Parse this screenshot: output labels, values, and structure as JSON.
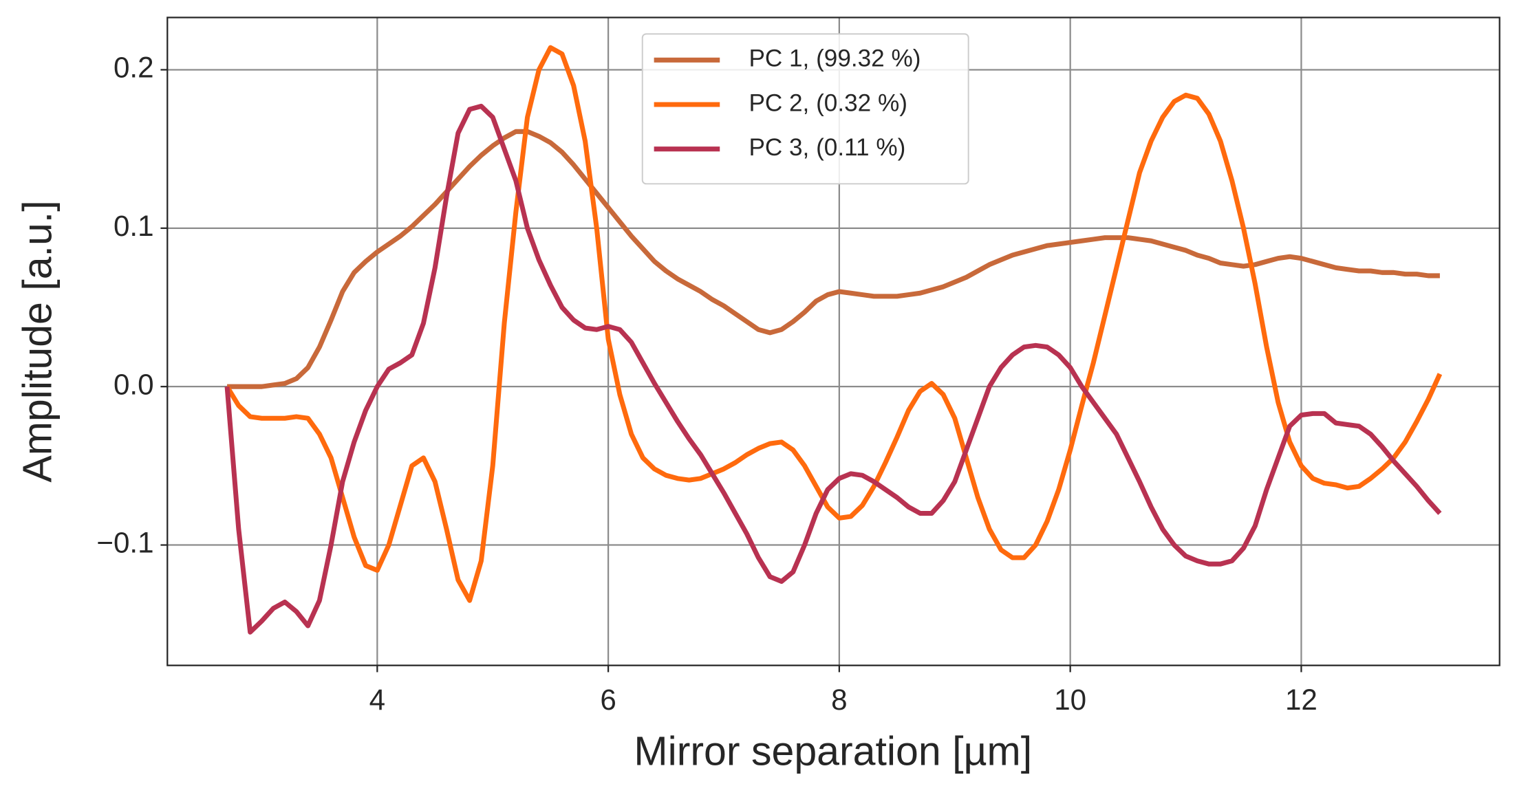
{
  "chart_data": {
    "type": "line",
    "x_label": "Mirror separation [µm]",
    "y_label": "Amplitude [a.u.]",
    "x": [
      2.7,
      2.8,
      2.9,
      3.0,
      3.1,
      3.2,
      3.3,
      3.4,
      3.5,
      3.6,
      3.7,
      3.8,
      3.9,
      4.0,
      4.1,
      4.2,
      4.3,
      4.4,
      4.5,
      4.6,
      4.7,
      4.8,
      4.9,
      5.0,
      5.1,
      5.2,
      5.3,
      5.4,
      5.5,
      5.6,
      5.7,
      5.8,
      5.9,
      6.0,
      6.1,
      6.2,
      6.3,
      6.4,
      6.5,
      6.6,
      6.7,
      6.8,
      6.9,
      7.0,
      7.1,
      7.2,
      7.3,
      7.4,
      7.5,
      7.6,
      7.7,
      7.8,
      7.9,
      8.0,
      8.1,
      8.2,
      8.3,
      8.4,
      8.5,
      8.6,
      8.7,
      8.8,
      8.9,
      9.0,
      9.1,
      9.2,
      9.3,
      9.4,
      9.5,
      9.6,
      9.7,
      9.8,
      9.9,
      10.0,
      10.1,
      10.2,
      10.3,
      10.4,
      10.5,
      10.6,
      10.7,
      10.8,
      10.9,
      11.0,
      11.1,
      11.2,
      11.3,
      11.4,
      11.5,
      11.6,
      11.7,
      11.8,
      11.9,
      12.0,
      12.1,
      12.2,
      12.3,
      12.4,
      12.5,
      12.6,
      12.7,
      12.8,
      12.9,
      13.0,
      13.1,
      13.2
    ],
    "series": [
      {
        "name": "PC 1, (99.32 %)",
        "color": "#c8693a",
        "values": [
          0,
          0,
          0,
          0,
          0.001,
          0.002,
          0.005,
          0.012,
          0.025,
          0.042,
          0.06,
          0.072,
          0.079,
          0.085,
          0.09,
          0.095,
          0.101,
          0.108,
          0.115,
          0.123,
          0.131,
          0.139,
          0.146,
          0.152,
          0.157,
          0.161,
          0.161,
          0.158,
          0.154,
          0.148,
          0.14,
          0.131,
          0.122,
          0.113,
          0.104,
          0.095,
          0.087,
          0.079,
          0.073,
          0.068,
          0.064,
          0.06,
          0.055,
          0.051,
          0.046,
          0.041,
          0.036,
          0.034,
          0.036,
          0.041,
          0.047,
          0.054,
          0.058,
          0.06,
          0.059,
          0.058,
          0.057,
          0.057,
          0.057,
          0.058,
          0.059,
          0.061,
          0.063,
          0.066,
          0.069,
          0.073,
          0.077,
          0.08,
          0.083,
          0.085,
          0.087,
          0.089,
          0.09,
          0.091,
          0.092,
          0.093,
          0.094,
          0.094,
          0.094,
          0.093,
          0.092,
          0.09,
          0.088,
          0.086,
          0.083,
          0.081,
          0.078,
          0.077,
          0.076,
          0.077,
          0.079,
          0.081,
          0.082,
          0.081,
          0.079,
          0.077,
          0.075,
          0.074,
          0.073,
          0.073,
          0.072,
          0.072,
          0.071,
          0.071,
          0.07,
          0.07
        ]
      },
      {
        "name": "PC 2, (0.32 %)",
        "color": "#ff6a0d",
        "values": [
          0,
          -0.012,
          -0.019,
          -0.02,
          -0.02,
          -0.02,
          -0.019,
          -0.02,
          -0.03,
          -0.045,
          -0.07,
          -0.095,
          -0.113,
          -0.116,
          -0.1,
          -0.075,
          -0.05,
          -0.045,
          -0.06,
          -0.09,
          -0.122,
          -0.135,
          -0.11,
          -0.05,
          0.04,
          0.11,
          0.17,
          0.2,
          0.214,
          0.21,
          0.19,
          0.155,
          0.1,
          0.03,
          -0.005,
          -0.03,
          -0.045,
          -0.052,
          -0.056,
          -0.058,
          -0.059,
          -0.058,
          -0.055,
          -0.052,
          -0.048,
          -0.043,
          -0.039,
          -0.036,
          -0.035,
          -0.04,
          -0.05,
          -0.063,
          -0.076,
          -0.083,
          -0.082,
          -0.075,
          -0.063,
          -0.048,
          -0.032,
          -0.015,
          -0.003,
          0.002,
          -0.005,
          -0.02,
          -0.045,
          -0.07,
          -0.09,
          -0.103,
          -0.108,
          -0.108,
          -0.1,
          -0.085,
          -0.065,
          -0.04,
          -0.012,
          0.015,
          0.045,
          0.075,
          0.105,
          0.135,
          0.155,
          0.17,
          0.18,
          0.184,
          0.182,
          0.172,
          0.155,
          0.13,
          0.1,
          0.065,
          0.025,
          -0.01,
          -0.035,
          -0.05,
          -0.058,
          -0.061,
          -0.062,
          -0.064,
          -0.063,
          -0.058,
          -0.052,
          -0.045,
          -0.035,
          -0.022,
          -0.008,
          0.008
        ]
      },
      {
        "name": "PC 3, (0.11 %)",
        "color": "#b83251",
        "values": [
          0,
          -0.09,
          -0.155,
          -0.148,
          -0.14,
          -0.136,
          -0.142,
          -0.151,
          -0.135,
          -0.1,
          -0.06,
          -0.035,
          -0.015,
          0,
          0.011,
          0.015,
          0.02,
          0.04,
          0.075,
          0.12,
          0.16,
          0.175,
          0.177,
          0.17,
          0.15,
          0.13,
          0.1,
          0.08,
          0.064,
          0.05,
          0.042,
          0.037,
          0.036,
          0.038,
          0.036,
          0.028,
          0.015,
          0.002,
          -0.01,
          -0.022,
          -0.033,
          -0.043,
          -0.055,
          -0.067,
          -0.08,
          -0.093,
          -0.108,
          -0.12,
          -0.123,
          -0.117,
          -0.1,
          -0.08,
          -0.065,
          -0.058,
          -0.055,
          -0.056,
          -0.06,
          -0.065,
          -0.07,
          -0.076,
          -0.08,
          -0.08,
          -0.072,
          -0.06,
          -0.04,
          -0.02,
          0,
          0.012,
          0.02,
          0.025,
          0.026,
          0.025,
          0.02,
          0.012,
          0,
          -0.01,
          -0.02,
          -0.03,
          -0.045,
          -0.06,
          -0.076,
          -0.09,
          -0.1,
          -0.107,
          -0.11,
          -0.112,
          -0.112,
          -0.11,
          -0.102,
          -0.088,
          -0.065,
          -0.045,
          -0.025,
          -0.018,
          -0.017,
          -0.017,
          -0.023,
          -0.024,
          -0.025,
          -0.03,
          -0.038,
          -0.047,
          -0.055,
          -0.063,
          -0.072,
          -0.08
        ]
      }
    ],
    "xlim": [
      2.183,
      13.717
    ],
    "ylim": [
      -0.176,
      0.233
    ],
    "xticks": [
      4,
      6,
      8,
      10,
      12
    ],
    "yticks": [
      {
        "value": -0.1,
        "label": "−0.1"
      },
      {
        "value": 0,
        "label": "0.0"
      },
      0.1,
      0.2
    ],
    "grid": true,
    "legend": "upper center"
  }
}
